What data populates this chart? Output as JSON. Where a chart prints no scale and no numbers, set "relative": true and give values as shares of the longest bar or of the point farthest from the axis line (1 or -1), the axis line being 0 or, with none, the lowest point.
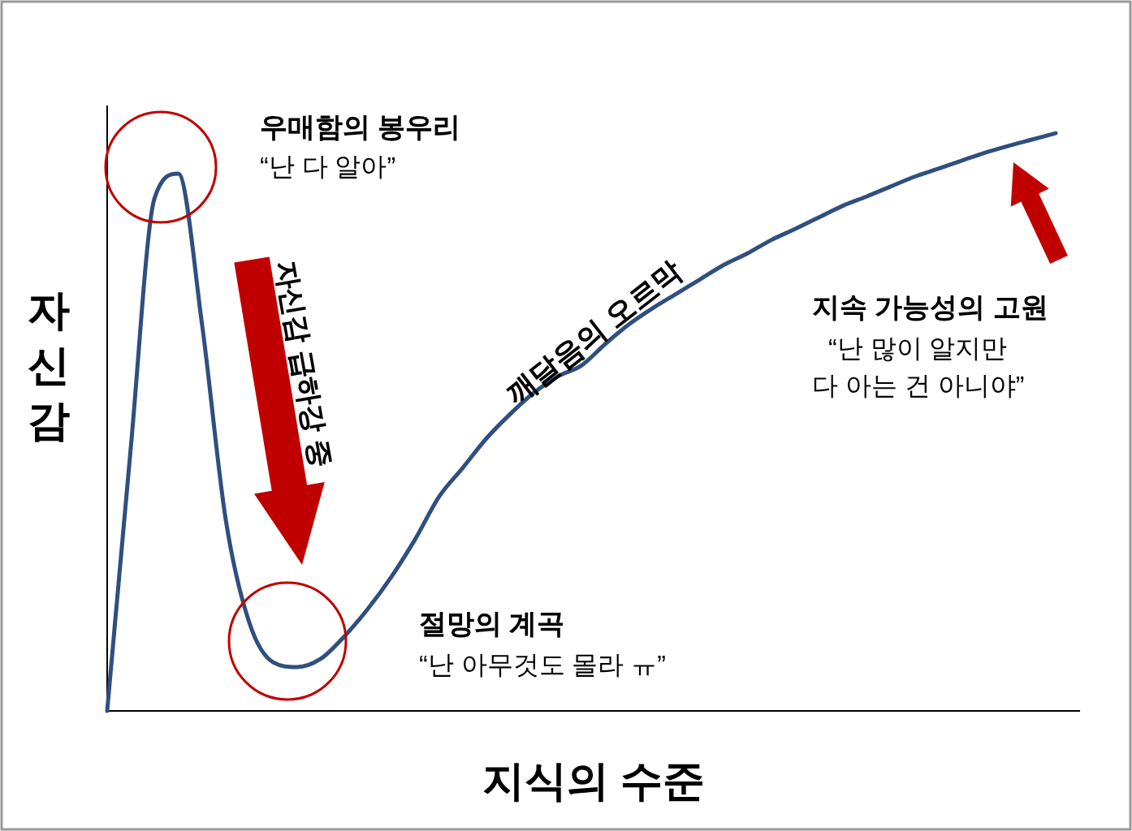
{
  "chart_data": {
    "type": "line",
    "relative": true,
    "categories": [
      null,
      null,
      null,
      null,
      null,
      null,
      null,
      null,
      null,
      null,
      null,
      null,
      null,
      null,
      null,
      null,
      null,
      null,
      null,
      null,
      null,
      null,
      null,
      null,
      null,
      null,
      null,
      null,
      null,
      null,
      null,
      null,
      null,
      null,
      null,
      null,
      null,
      null,
      null,
      null,
      null
    ],
    "series": [
      {
        "color": "#2f4f7f",
        "values": [
          0,
          0.458,
          0.888,
          0.93,
          0.669,
          0.331,
          0.152,
          0.084,
          0.076,
          0.09,
          0.129,
          0.177,
          0.233,
          0.298,
          0.371,
          0.421,
          0.472,
          0.514,
          0.551,
          0.579,
          0.598,
          0.635,
          0.669,
          0.697,
          0.722,
          0.747,
          0.772,
          0.792,
          0.815,
          0.834,
          0.854,
          0.874,
          0.89,
          0.907,
          0.924,
          0.938,
          0.952,
          0.966,
          0.978,
          0.989,
          1
        ]
      }
    ],
    "xlabel": "지식의 수준",
    "ylabel": "자신감",
    "annotations": [
      "우매함의 봉우리",
      "“난 다 알아”",
      "자신감 급하강 중",
      "깨달음의 오르막",
      "절망의 계곡",
      "“난 아무것도 몰라 ㅠ”",
      "지속 가능성의 고원",
      "“난 많이 알지만",
      "다 아는 건 아니야”"
    ]
  }
}
